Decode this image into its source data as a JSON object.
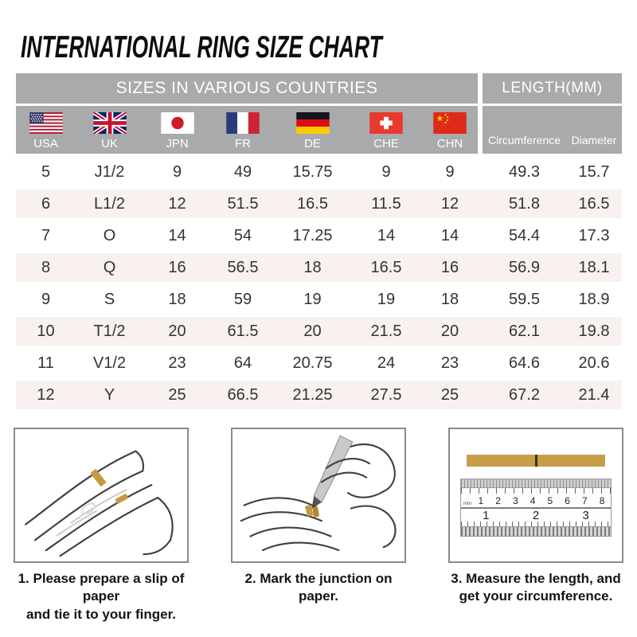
{
  "title": "INTERNATIONAL RING SIZE CHART",
  "chart_data": {
    "type": "table",
    "title": "INTERNATIONAL RING SIZE CHART",
    "column_groups": [
      "SIZES IN VARIOUS COUNTRIES",
      "LENGTH(MM)"
    ],
    "columns": [
      "USA",
      "UK",
      "JPN",
      "FR",
      "DE",
      "CHE",
      "CHN",
      "Circumference",
      "Diameter"
    ],
    "rows": [
      [
        "5",
        "J1/2",
        "9",
        "49",
        "15.75",
        "9",
        "9",
        "49.3",
        "15.7"
      ],
      [
        "6",
        "L1/2",
        "12",
        "51.5",
        "16.5",
        "11.5",
        "12",
        "51.8",
        "16.5"
      ],
      [
        "7",
        "O",
        "14",
        "54",
        "17.25",
        "14",
        "14",
        "54.4",
        "17.3"
      ],
      [
        "8",
        "Q",
        "16",
        "56.5",
        "18",
        "16.5",
        "16",
        "56.9",
        "18.1"
      ],
      [
        "9",
        "S",
        "18",
        "59",
        "19",
        "19",
        "18",
        "59.5",
        "18.9"
      ],
      [
        "10",
        "T1/2",
        "20",
        "61.5",
        "20",
        "21.5",
        "20",
        "62.1",
        "19.8"
      ],
      [
        "11",
        "V1/2",
        "23",
        "64",
        "20.75",
        "24",
        "23",
        "64.6",
        "20.6"
      ],
      [
        "12",
        "Y",
        "25",
        "66.5",
        "21.25",
        "27.5",
        "25",
        "67.2",
        "21.4"
      ]
    ]
  },
  "table": {
    "group_left": "SIZES IN VARIOUS COUNTRIES",
    "group_right": "LENGTH(MM)",
    "flag_columns": [
      {
        "code": "USA",
        "flag": "usa-flag"
      },
      {
        "code": "UK",
        "flag": "uk-flag"
      },
      {
        "code": "JPN",
        "flag": "japan-flag"
      },
      {
        "code": "FR",
        "flag": "france-flag"
      },
      {
        "code": "DE",
        "flag": "germany-flag"
      },
      {
        "code": "CHE",
        "flag": "switzerland-flag"
      },
      {
        "code": "CHN",
        "flag": "china-flag"
      }
    ],
    "length_columns": [
      "Circumference",
      "Diameter"
    ]
  },
  "instructions": [
    {
      "illustration": "hand-with-paper-strip",
      "lines": [
        "1. Please prepare a slip of paper",
        "and tie it to your finger."
      ]
    },
    {
      "illustration": "mark-junction-with-pen",
      "lines": [
        "2. Mark the junction on paper."
      ]
    },
    {
      "illustration": "ruler-measurement",
      "lines": [
        "3. Measure the length, and",
        "get your circumference."
      ]
    }
  ],
  "ruler": {
    "unit_label": "mm",
    "cm_labels": [
      "1",
      "2",
      "3",
      "4",
      "5",
      "6",
      "7",
      "8"
    ],
    "inch_labels": [
      "1",
      "2",
      "3"
    ]
  },
  "colors": {
    "header_bg": "#a9aaac",
    "row_stripe": "#f8f1ef",
    "table_text": "#333333",
    "paper_strip_gold": "#c49a3e",
    "box_border": "#8a8a8a",
    "title_text": "#0d0d0d"
  }
}
